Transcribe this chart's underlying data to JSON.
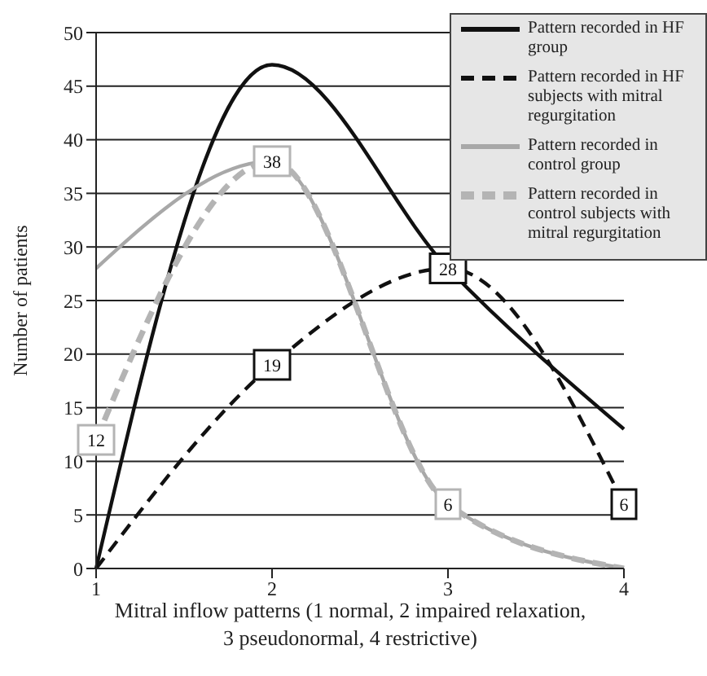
{
  "chart_data": {
    "type": "line",
    "xlabel": "Mitral inflow patterns (1 normal, 2 impaired relaxation, 3 pseudonormal, 4 restrictive)",
    "ylabel": "Number of patients",
    "categories": [
      "1",
      "2",
      "3",
      "4"
    ],
    "series": [
      {
        "name": "Pattern recorded in HF group",
        "color": "#111111",
        "values": [
          0,
          47,
          28,
          13
        ],
        "line_style": "solid"
      },
      {
        "name": "Pattern recorded in HF subjects with mitral regurgitation",
        "color": "#111111",
        "values": [
          0,
          19,
          28,
          6
        ],
        "line_style": "dashed",
        "value_labels": [
          null,
          "19",
          "28",
          "6"
        ]
      },
      {
        "name": "Pattern recorded in control group",
        "color": "#a8a8a8",
        "values": [
          28,
          38,
          6,
          0
        ],
        "line_style": "solid"
      },
      {
        "name": "Pattern recorded in control subjects with mitral regurgitation",
        "color": "#b4b4b4",
        "values": [
          12,
          38,
          6,
          0
        ],
        "line_style": "dashed",
        "value_labels": [
          "12",
          "38",
          "6",
          null
        ]
      }
    ],
    "ylim": [
      0,
      50
    ],
    "yticks": [
      0,
      5,
      10,
      15,
      20,
      25,
      30,
      35,
      40,
      45,
      50
    ],
    "grid": "y",
    "legend": "top right"
  }
}
